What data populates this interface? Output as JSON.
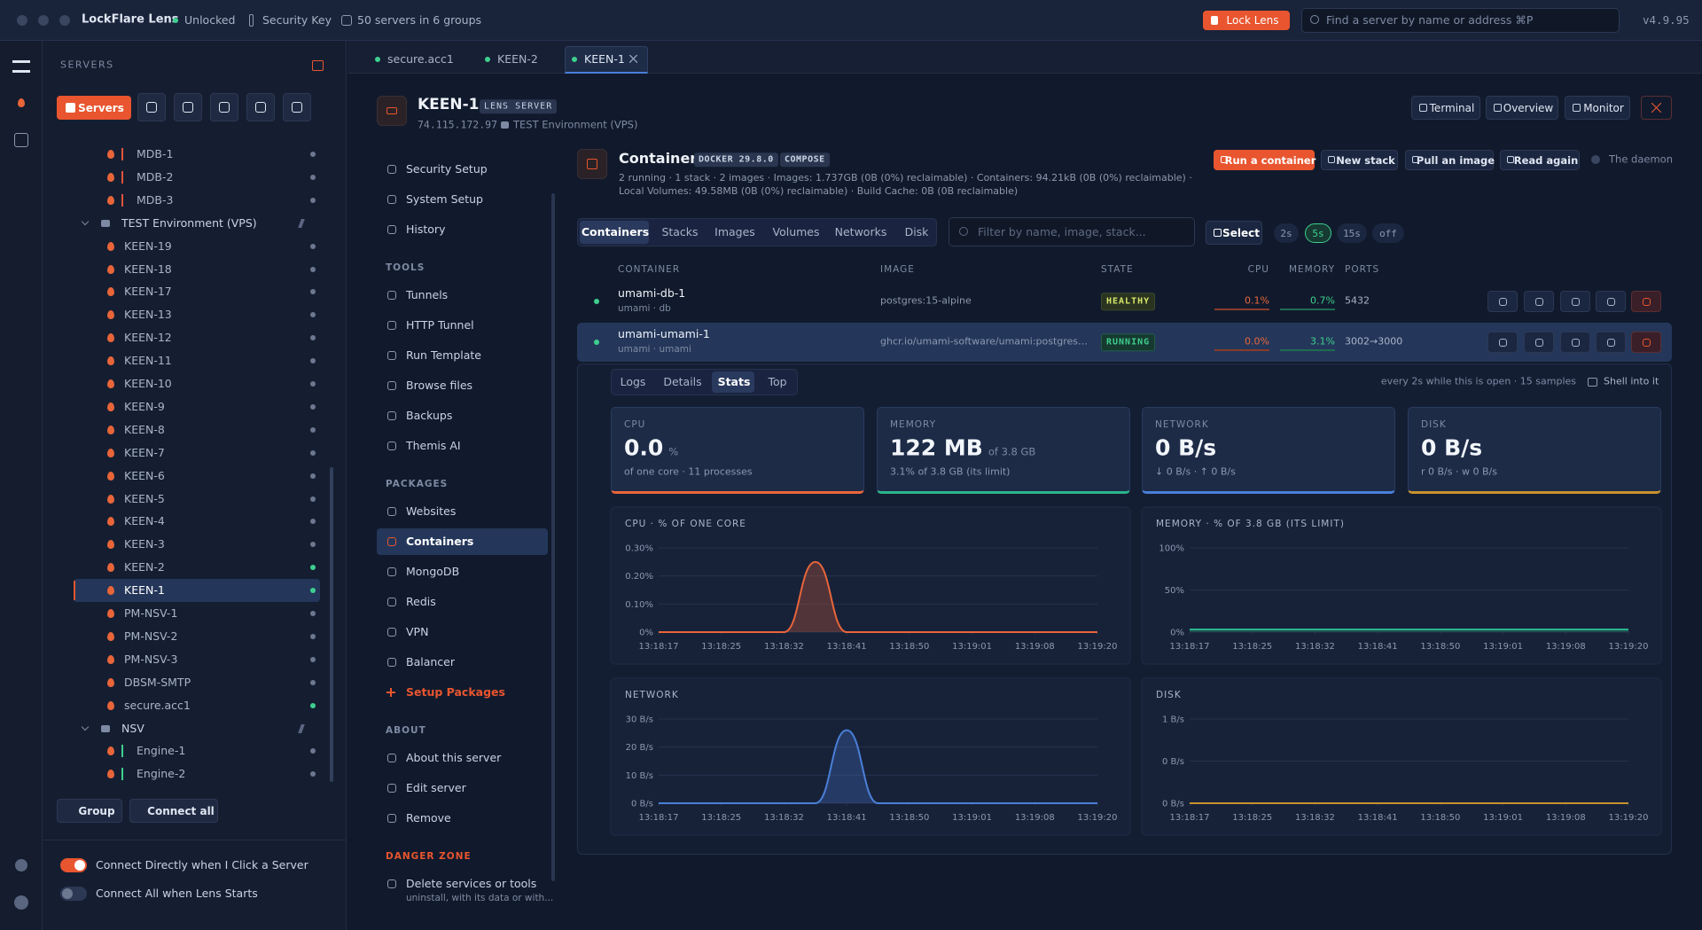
{
  "titlebar": {
    "app": "LockFlare Lens",
    "status": "Unlocked",
    "key": "Security Key",
    "servers": "50 servers in 6 groups",
    "lock": "Lock Lens",
    "search": "Find a server by name or address ⌘P",
    "version": "v4.9.95"
  },
  "sidebar": {
    "heading": "SERVERS",
    "tab": "Servers",
    "tree": [
      {
        "label": "MDB-1",
        "kind": "server",
        "bar": "#e0533a",
        "online": false
      },
      {
        "label": "MDB-2",
        "kind": "server",
        "bar": "#e0533a",
        "online": false
      },
      {
        "label": "MDB-3",
        "kind": "server",
        "bar": "#e0533a",
        "online": false
      },
      {
        "label": "TEST Environment (VPS)",
        "kind": "group"
      },
      {
        "label": "KEEN-19",
        "kind": "server",
        "online": false
      },
      {
        "label": "KEEN-18",
        "kind": "server",
        "online": false
      },
      {
        "label": "KEEN-17",
        "kind": "server",
        "online": false
      },
      {
        "label": "KEEN-13",
        "kind": "server",
        "online": false
      },
      {
        "label": "KEEN-12",
        "kind": "server",
        "online": false
      },
      {
        "label": "KEEN-11",
        "kind": "server",
        "online": false
      },
      {
        "label": "KEEN-10",
        "kind": "server",
        "online": false
      },
      {
        "label": "KEEN-9",
        "kind": "server",
        "online": false
      },
      {
        "label": "KEEN-8",
        "kind": "server",
        "online": false
      },
      {
        "label": "KEEN-7",
        "kind": "server",
        "online": false
      },
      {
        "label": "KEEN-6",
        "kind": "server",
        "online": false
      },
      {
        "label": "KEEN-5",
        "kind": "server",
        "online": false
      },
      {
        "label": "KEEN-4",
        "kind": "server",
        "online": false
      },
      {
        "label": "KEEN-3",
        "kind": "server",
        "online": false
      },
      {
        "label": "KEEN-2",
        "kind": "server",
        "online": true
      },
      {
        "label": "KEEN-1",
        "kind": "server",
        "online": true,
        "selected": true
      },
      {
        "label": "PM-NSV-1",
        "kind": "server",
        "online": false
      },
      {
        "label": "PM-NSV-2",
        "kind": "server",
        "online": false
      },
      {
        "label": "PM-NSV-3",
        "kind": "server",
        "online": false
      },
      {
        "label": "DBSM-SMTP",
        "kind": "server",
        "online": false
      },
      {
        "label": "secure.acc1",
        "kind": "server",
        "online": true
      },
      {
        "label": "NSV",
        "kind": "group"
      },
      {
        "label": "Engine-1",
        "kind": "server",
        "bar": "#3ecf8e",
        "online": false
      },
      {
        "label": "Engine-2",
        "kind": "server",
        "bar": "#3ecf8e",
        "online": false
      }
    ],
    "buttons": [
      "Group",
      "Connect all"
    ],
    "toggles": [
      {
        "label": "Connect Directly when I Click a Server",
        "on": true
      },
      {
        "label": "Connect All when Lens Starts",
        "on": false
      }
    ]
  },
  "tabs": {
    "items": [
      "secure.acc1",
      "KEEN-2",
      "KEEN-1"
    ],
    "active": 2
  },
  "server": {
    "name": "KEEN-1",
    "badge": "LENS SERVER",
    "address": "74.115.172.97",
    "env": "TEST Environment (VPS)",
    "actions": [
      "Terminal",
      "Overview",
      "Monitor"
    ]
  },
  "nav": {
    "sections": [
      {
        "items": [
          "Security Setup",
          "System Setup",
          "History"
        ]
      },
      {
        "title": "TOOLS",
        "items": [
          "Tunnels",
          "HTTP Tunnel",
          "Run Template",
          "Browse files",
          "Backups",
          "Themis AI"
        ]
      },
      {
        "title": "PACKAGES",
        "items": [
          "Websites",
          "Containers",
          "MongoDB",
          "Redis",
          "VPN",
          "Balancer",
          "Setup Packages"
        ]
      },
      {
        "title": "ABOUT",
        "items": [
          "About this server",
          "Edit server",
          "Remove"
        ]
      },
      {
        "title": "DANGER ZONE",
        "items": [
          "Delete services or tools"
        ],
        "note": "uninstall, with its data or with..."
      }
    ],
    "active": {
      "section": 2,
      "item": 1
    },
    "accent": {
      "section": 2,
      "item": 6
    }
  },
  "containers": {
    "title": "Containers",
    "badges": [
      "DOCKER 29.8.0",
      "COMPOSE"
    ],
    "summary": "2 running · 1 stack · 2 images · Images: 1.737GB (0B (0%) reclaimable) · Containers: 94.21kB (0B (0%) reclaimable) · Local Volumes: 49.58MB (0B (0%) reclaimable) · Build Cache: 0B (0B reclaimable)",
    "actions": [
      "Run a container",
      "New stack",
      "Pull an image",
      "Read again"
    ],
    "daemon": "The daemon",
    "tabs": [
      "Containers",
      "Stacks",
      "Images",
      "Volumes",
      "Networks",
      "Disk"
    ],
    "active_tab": 0,
    "filter": "Filter by name, image, stack...",
    "select": "Select",
    "intervals": [
      "2s",
      "5s",
      "15s",
      "off"
    ],
    "active_interval": 1,
    "columns": [
      "CONTAINER",
      "IMAGE",
      "STATE",
      "CPU",
      "MEMORY",
      "PORTS"
    ],
    "rows": [
      {
        "name": "umami-db-1",
        "sub": "umami · db",
        "image": "postgres:15-alpine",
        "state": "HEALTHY",
        "cpu": "0.1%",
        "memory": "0.7%",
        "ports": "5432"
      },
      {
        "name": "umami-umami-1",
        "sub": "umami · umami",
        "image": "ghcr.io/umami-software/umami:postgresql-lat...",
        "state": "RUNNING",
        "cpu": "0.0%",
        "memory": "3.1%",
        "ports": "3002→3000"
      }
    ],
    "expanded": 1
  },
  "detail": {
    "tabs": [
      "Logs",
      "Details",
      "Stats",
      "Top"
    ],
    "active": 2,
    "note": "every 2s while this is open · 15 samples",
    "shell": "Shell into it",
    "cards": [
      {
        "label": "CPU",
        "value": "0.0",
        "unit": "%",
        "sub": "of one core · 11 processes",
        "color": "#e8653a"
      },
      {
        "label": "MEMORY",
        "value": "122 MB",
        "unit": "of 3.8 GB",
        "sub": "3.1% of 3.8 GB (its limit)",
        "color": "#2bb58a"
      },
      {
        "label": "NETWORK",
        "value": "0 B/s",
        "sub": "↓ 0 B/s · ↑ 0 B/s",
        "color": "#4a7fd9"
      },
      {
        "label": "DISK",
        "value": "0 B/s",
        "sub": "r 0 B/s · w 0 B/s",
        "color": "#c8922e"
      }
    ]
  },
  "chart_data": [
    {
      "type": "line",
      "title": "CPU · % OF ONE CORE",
      "x": [
        0,
        1,
        2,
        3,
        4,
        5,
        6,
        7,
        8,
        9,
        10,
        11,
        12,
        13,
        14
      ],
      "xlim": [
        0,
        14
      ],
      "xticks": [
        {
          "value": 0,
          "label": "13:18:17"
        },
        {
          "value": 2,
          "label": "13:18:25"
        },
        {
          "value": 4,
          "label": "13:18:32"
        },
        {
          "value": 6,
          "label": "13:18:41"
        },
        {
          "value": 8,
          "label": "13:18:50"
        },
        {
          "value": 10,
          "label": "13:19:01"
        },
        {
          "value": 12,
          "label": "13:19:08"
        },
        {
          "value": 14,
          "label": "13:19:20"
        }
      ],
      "ylim": [
        0,
        0.3
      ],
      "yticks": [
        {
          "value": 0,
          "label": "0%"
        },
        {
          "value": 0.1,
          "label": "0.10%"
        },
        {
          "value": 0.2,
          "label": "0.20%"
        },
        {
          "value": 0.3,
          "label": "0.30%"
        }
      ],
      "values": [
        0,
        0,
        0,
        0,
        0,
        0.25,
        0,
        0,
        0,
        0,
        0,
        0,
        0,
        0,
        0
      ],
      "color": "#e8653a",
      "area": true,
      "grid": true
    },
    {
      "type": "line",
      "title": "MEMORY · % OF 3.8 GB (ITS LIMIT)",
      "x": [
        0,
        1,
        2,
        3,
        4,
        5,
        6,
        7,
        8,
        9,
        10,
        11,
        12,
        13,
        14
      ],
      "xlim": [
        0,
        14
      ],
      "xticks": [
        {
          "value": 0,
          "label": "13:18:17"
        },
        {
          "value": 2,
          "label": "13:18:25"
        },
        {
          "value": 4,
          "label": "13:18:32"
        },
        {
          "value": 6,
          "label": "13:18:41"
        },
        {
          "value": 8,
          "label": "13:18:50"
        },
        {
          "value": 10,
          "label": "13:19:01"
        },
        {
          "value": 12,
          "label": "13:19:08"
        },
        {
          "value": 14,
          "label": "13:19:20"
        }
      ],
      "ylim": [
        0,
        100
      ],
      "yticks": [
        {
          "value": 0,
          "label": "0%"
        },
        {
          "value": 50,
          "label": "50%"
        },
        {
          "value": 100,
          "label": "100%"
        }
      ],
      "values": [
        3.1,
        3.1,
        3.1,
        3.1,
        3.1,
        3.1,
        3.1,
        3.1,
        3.1,
        3.1,
        3.1,
        3.1,
        3.1,
        3.1,
        3.1
      ],
      "color": "#2bb58a",
      "area": true,
      "grid": true
    },
    {
      "type": "line",
      "title": "NETWORK",
      "x": [
        0,
        1,
        2,
        3,
        4,
        5,
        6,
        7,
        8,
        9,
        10,
        11,
        12,
        13,
        14
      ],
      "xlim": [
        0,
        14
      ],
      "xticks": [
        {
          "value": 0,
          "label": "13:18:17"
        },
        {
          "value": 2,
          "label": "13:18:25"
        },
        {
          "value": 4,
          "label": "13:18:32"
        },
        {
          "value": 6,
          "label": "13:18:41"
        },
        {
          "value": 8,
          "label": "13:18:50"
        },
        {
          "value": 10,
          "label": "13:19:01"
        },
        {
          "value": 12,
          "label": "13:19:08"
        },
        {
          "value": 14,
          "label": "13:19:20"
        }
      ],
      "ylim": [
        0,
        30
      ],
      "yticks": [
        {
          "value": 0,
          "label": "0 B/s"
        },
        {
          "value": 10,
          "label": "10 B/s"
        },
        {
          "value": 20,
          "label": "20 B/s"
        },
        {
          "value": 30,
          "label": "30 B/s"
        }
      ],
      "values": [
        0,
        0,
        0,
        0,
        0,
        0,
        26,
        0,
        0,
        0,
        0,
        0,
        0,
        0,
        0
      ],
      "color": "#4a7fd9",
      "area": true,
      "grid": true
    },
    {
      "type": "line",
      "title": "DISK",
      "x": [
        0,
        1,
        2,
        3,
        4,
        5,
        6,
        7,
        8,
        9,
        10,
        11,
        12,
        13,
        14
      ],
      "xlim": [
        0,
        14
      ],
      "xticks": [
        {
          "value": 0,
          "label": "13:18:17"
        },
        {
          "value": 2,
          "label": "13:18:25"
        },
        {
          "value": 4,
          "label": "13:18:32"
        },
        {
          "value": 6,
          "label": "13:18:41"
        },
        {
          "value": 8,
          "label": "13:18:50"
        },
        {
          "value": 10,
          "label": "13:19:01"
        },
        {
          "value": 12,
          "label": "13:19:08"
        },
        {
          "value": 14,
          "label": "13:19:20"
        }
      ],
      "ylim": [
        0,
        1
      ],
      "yticks": [
        {
          "value": 0,
          "label": "0 B/s"
        },
        {
          "value": 0.5,
          "label": "0 B/s"
        },
        {
          "value": 1,
          "label": "1 B/s"
        }
      ],
      "values": [
        0,
        0,
        0,
        0,
        0,
        0,
        0,
        0,
        0,
        0,
        0,
        0,
        0,
        0,
        0
      ],
      "color": "#c8922e",
      "area": false,
      "grid": true
    }
  ]
}
